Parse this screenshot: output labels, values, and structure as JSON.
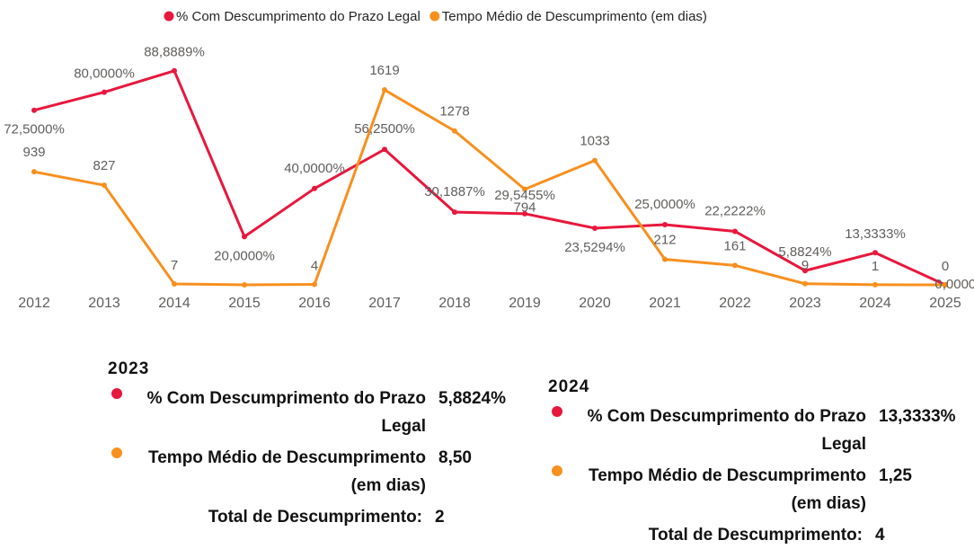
{
  "chart_data": {
    "type": "line",
    "categories": [
      "2012",
      "2013",
      "2014",
      "2015",
      "2016",
      "2017",
      "2018",
      "2019",
      "2020",
      "2021",
      "2022",
      "2023",
      "2024",
      "2025"
    ],
    "series": [
      {
        "name": "% Com Descumprimento do Prazo Legal",
        "color": "#e8173d",
        "values": [
          72.5,
          80,
          88.8889,
          20,
          40,
          56.25,
          30.1887,
          29.5455,
          23.5294,
          25,
          22.2222,
          5.8824,
          13.3333,
          0
        ],
        "value_labels": [
          "72,5000%",
          "80,0000%",
          "88,8889%",
          "20,0000%",
          "40,0000%",
          "56,2500%",
          "30,1887%",
          "29,5455%",
          "23,5294%",
          "25,0000%",
          "22,2222%",
          "5,8824%",
          "13,3333%",
          "0,0000%"
        ]
      },
      {
        "name": "Tempo Médio de Descumprimento (em dias)",
        "color": "#f7901e",
        "axis": "y2",
        "values": [
          939,
          827,
          7,
          0,
          4,
          1619,
          1278,
          794,
          1033,
          212,
          161,
          9,
          1,
          0
        ],
        "value_labels": [
          "939",
          "827",
          "7",
          null,
          "4",
          "1619",
          "1278",
          "794",
          "1033",
          "212",
          "161",
          "9",
          "1",
          "0"
        ]
      }
    ],
    "ylim": [
      0,
      100
    ],
    "y2lim": [
      0,
      2000
    ],
    "legend": "top"
  },
  "tooltips": [
    {
      "title": "2023",
      "rows": [
        {
          "label": "% Com Descumprimento do Prazo Legal",
          "value": "5,8824%"
        },
        {
          "label": "Tempo Médio de Descumprimento (em dias)",
          "value": "8,50"
        }
      ],
      "total_label": "Total de Descumprimento:",
      "total": "2"
    },
    {
      "title": "2024",
      "rows": [
        {
          "label": "% Com Descumprimento do Prazo Legal",
          "value": "13,3333%"
        },
        {
          "label": "Tempo Médio de Descumprimento (em dias)",
          "value": "1,25"
        }
      ],
      "total_label": "Total de Descumprimento:",
      "total": "4"
    }
  ]
}
